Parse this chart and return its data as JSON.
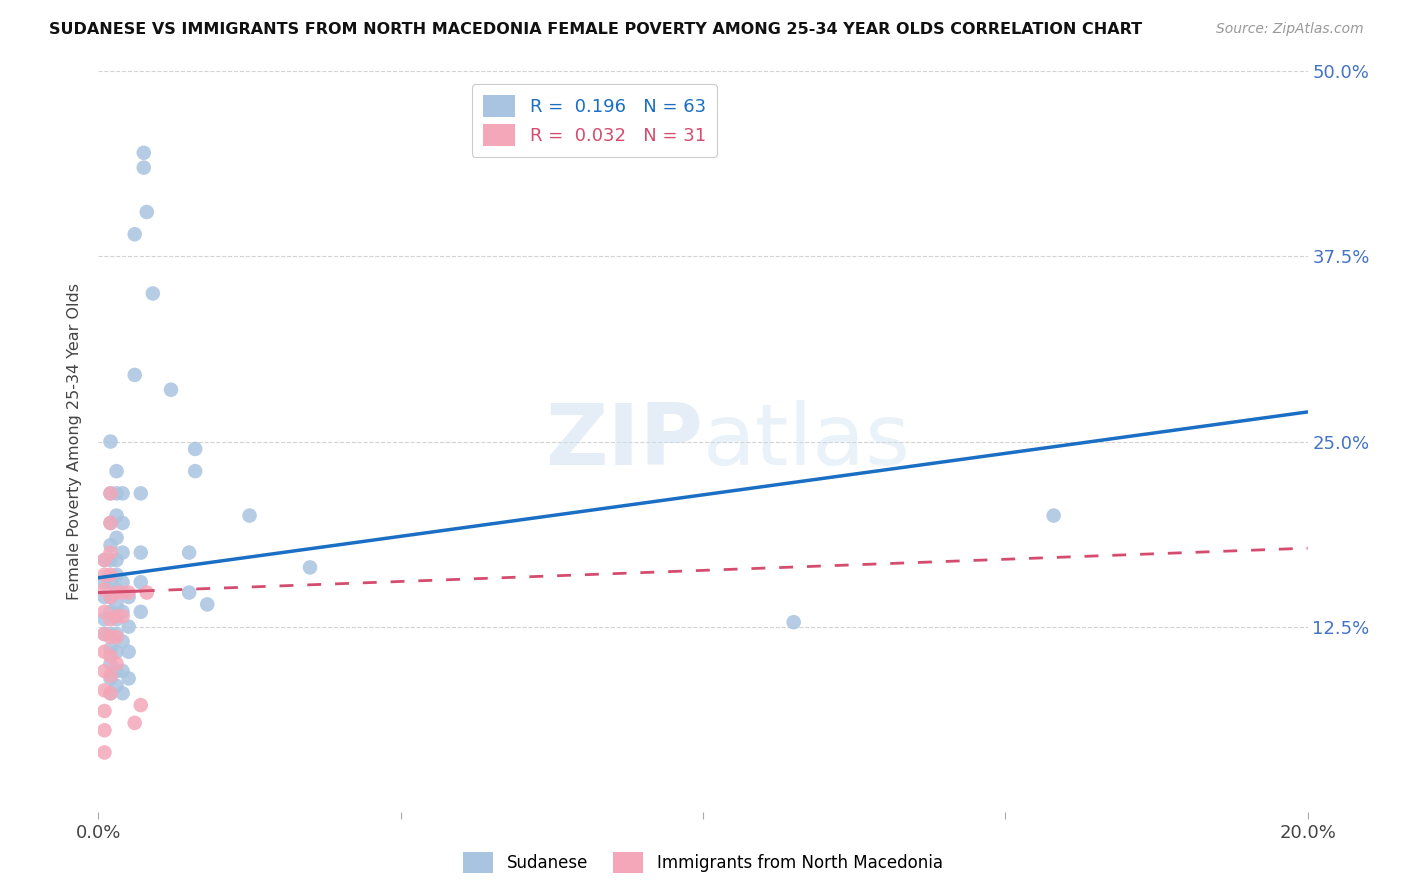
{
  "title": "SUDANESE VS IMMIGRANTS FROM NORTH MACEDONIA FEMALE POVERTY AMONG 25-34 YEAR OLDS CORRELATION CHART",
  "source": "Source: ZipAtlas.com",
  "ylabel": "Female Poverty Among 25-34 Year Olds",
  "xlim": [
    0.0,
    0.2
  ],
  "ylim": [
    0.0,
    0.5
  ],
  "xticks": [
    0.0,
    0.05,
    0.1,
    0.15,
    0.2
  ],
  "xticklabels": [
    "0.0%",
    "",
    "",
    "",
    "20.0%"
  ],
  "yticks": [
    0.0,
    0.125,
    0.25,
    0.375,
    0.5
  ],
  "yticklabels": [
    "",
    "12.5%",
    "25.0%",
    "37.5%",
    "50.0%"
  ],
  "R_blue": 0.196,
  "N_blue": 63,
  "R_pink": 0.032,
  "N_pink": 31,
  "color_blue": "#a8c4e0",
  "color_pink": "#f4a7b9",
  "line_blue": "#1a6fc4",
  "line_pink": "#d44c6e",
  "background": "#ffffff",
  "grid_color": "#c8c8c8",
  "watermark": "ZIPatlas",
  "blue_line_x0": 0.0,
  "blue_line_y0": 0.158,
  "blue_line_x1": 0.2,
  "blue_line_y1": 0.27,
  "pink_line_x0": 0.0,
  "pink_line_y0": 0.148,
  "pink_line_x1": 0.2,
  "pink_line_y1": 0.178,
  "blue_points": [
    [
      0.001,
      0.17
    ],
    [
      0.001,
      0.155
    ],
    [
      0.001,
      0.145
    ],
    [
      0.001,
      0.13
    ],
    [
      0.001,
      0.12
    ],
    [
      0.002,
      0.25
    ],
    [
      0.002,
      0.215
    ],
    [
      0.002,
      0.195
    ],
    [
      0.002,
      0.18
    ],
    [
      0.002,
      0.17
    ],
    [
      0.002,
      0.155
    ],
    [
      0.002,
      0.145
    ],
    [
      0.002,
      0.135
    ],
    [
      0.002,
      0.12
    ],
    [
      0.002,
      0.11
    ],
    [
      0.002,
      0.1
    ],
    [
      0.002,
      0.09
    ],
    [
      0.002,
      0.08
    ],
    [
      0.003,
      0.23
    ],
    [
      0.003,
      0.215
    ],
    [
      0.003,
      0.2
    ],
    [
      0.003,
      0.185
    ],
    [
      0.003,
      0.17
    ],
    [
      0.003,
      0.16
    ],
    [
      0.003,
      0.15
    ],
    [
      0.003,
      0.14
    ],
    [
      0.003,
      0.13
    ],
    [
      0.003,
      0.12
    ],
    [
      0.003,
      0.108
    ],
    [
      0.003,
      0.095
    ],
    [
      0.003,
      0.085
    ],
    [
      0.004,
      0.215
    ],
    [
      0.004,
      0.195
    ],
    [
      0.004,
      0.175
    ],
    [
      0.004,
      0.155
    ],
    [
      0.004,
      0.135
    ],
    [
      0.004,
      0.115
    ],
    [
      0.004,
      0.095
    ],
    [
      0.004,
      0.08
    ],
    [
      0.005,
      0.145
    ],
    [
      0.005,
      0.125
    ],
    [
      0.005,
      0.108
    ],
    [
      0.005,
      0.09
    ],
    [
      0.006,
      0.39
    ],
    [
      0.006,
      0.295
    ],
    [
      0.007,
      0.215
    ],
    [
      0.007,
      0.175
    ],
    [
      0.007,
      0.155
    ],
    [
      0.007,
      0.135
    ],
    [
      0.0075,
      0.445
    ],
    [
      0.0075,
      0.435
    ],
    [
      0.008,
      0.405
    ],
    [
      0.009,
      0.35
    ],
    [
      0.012,
      0.285
    ],
    [
      0.015,
      0.175
    ],
    [
      0.015,
      0.148
    ],
    [
      0.016,
      0.245
    ],
    [
      0.016,
      0.23
    ],
    [
      0.018,
      0.14
    ],
    [
      0.025,
      0.2
    ],
    [
      0.035,
      0.165
    ],
    [
      0.115,
      0.128
    ],
    [
      0.158,
      0.2
    ]
  ],
  "pink_points": [
    [
      0.001,
      0.17
    ],
    [
      0.001,
      0.16
    ],
    [
      0.001,
      0.15
    ],
    [
      0.001,
      0.135
    ],
    [
      0.001,
      0.12
    ],
    [
      0.001,
      0.108
    ],
    [
      0.001,
      0.095
    ],
    [
      0.001,
      0.082
    ],
    [
      0.001,
      0.068
    ],
    [
      0.001,
      0.055
    ],
    [
      0.001,
      0.04
    ],
    [
      0.002,
      0.215
    ],
    [
      0.002,
      0.195
    ],
    [
      0.002,
      0.175
    ],
    [
      0.002,
      0.16
    ],
    [
      0.002,
      0.145
    ],
    [
      0.002,
      0.13
    ],
    [
      0.002,
      0.118
    ],
    [
      0.002,
      0.105
    ],
    [
      0.002,
      0.092
    ],
    [
      0.002,
      0.08
    ],
    [
      0.003,
      0.148
    ],
    [
      0.003,
      0.132
    ],
    [
      0.003,
      0.118
    ],
    [
      0.003,
      0.1
    ],
    [
      0.004,
      0.148
    ],
    [
      0.004,
      0.132
    ],
    [
      0.005,
      0.148
    ],
    [
      0.006,
      0.06
    ],
    [
      0.007,
      0.072
    ],
    [
      0.008,
      0.148
    ]
  ]
}
